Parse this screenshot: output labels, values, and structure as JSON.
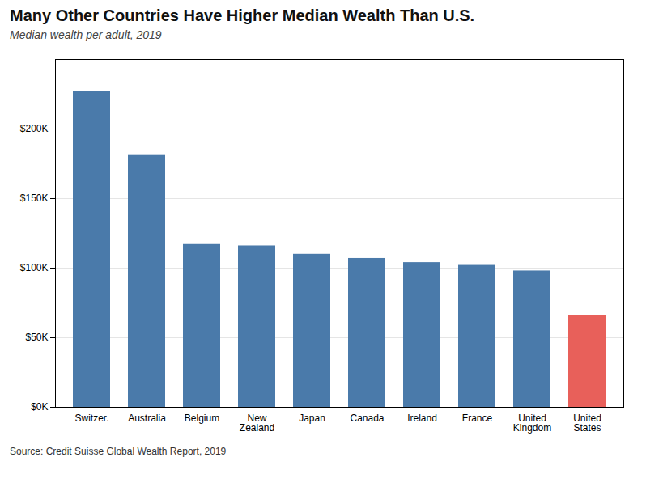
{
  "chart_data": {
    "type": "bar",
    "title": "Many Other Countries Have Higher Median Wealth Than U.S.",
    "subtitle": "Median wealth per adult, 2019",
    "source": "Source: Credit Suisse Global Wealth Report, 2019",
    "categories": [
      "Switzer.",
      "Australia",
      "Belgium",
      "New\nZealand",
      "Japan",
      "Canada",
      "Ireland",
      "France",
      "United\nKingdom",
      "United\nStates"
    ],
    "values": [
      227000,
      181000,
      117000,
      116000,
      110000,
      107000,
      104000,
      102000,
      98000,
      66000
    ],
    "colors": [
      "#4a7aaa",
      "#4a7aaa",
      "#4a7aaa",
      "#4a7aaa",
      "#4a7aaa",
      "#4a7aaa",
      "#4a7aaa",
      "#4a7aaa",
      "#4a7aaa",
      "#e8605a"
    ],
    "ylim": [
      0,
      250000
    ],
    "yticks": [
      {
        "value": 0,
        "label": "$0K"
      },
      {
        "value": 50000,
        "label": "$50K"
      },
      {
        "value": 100000,
        "label": "$100K"
      },
      {
        "value": 150000,
        "label": "$150K"
      },
      {
        "value": 200000,
        "label": "$200K"
      }
    ],
    "grid": true
  }
}
